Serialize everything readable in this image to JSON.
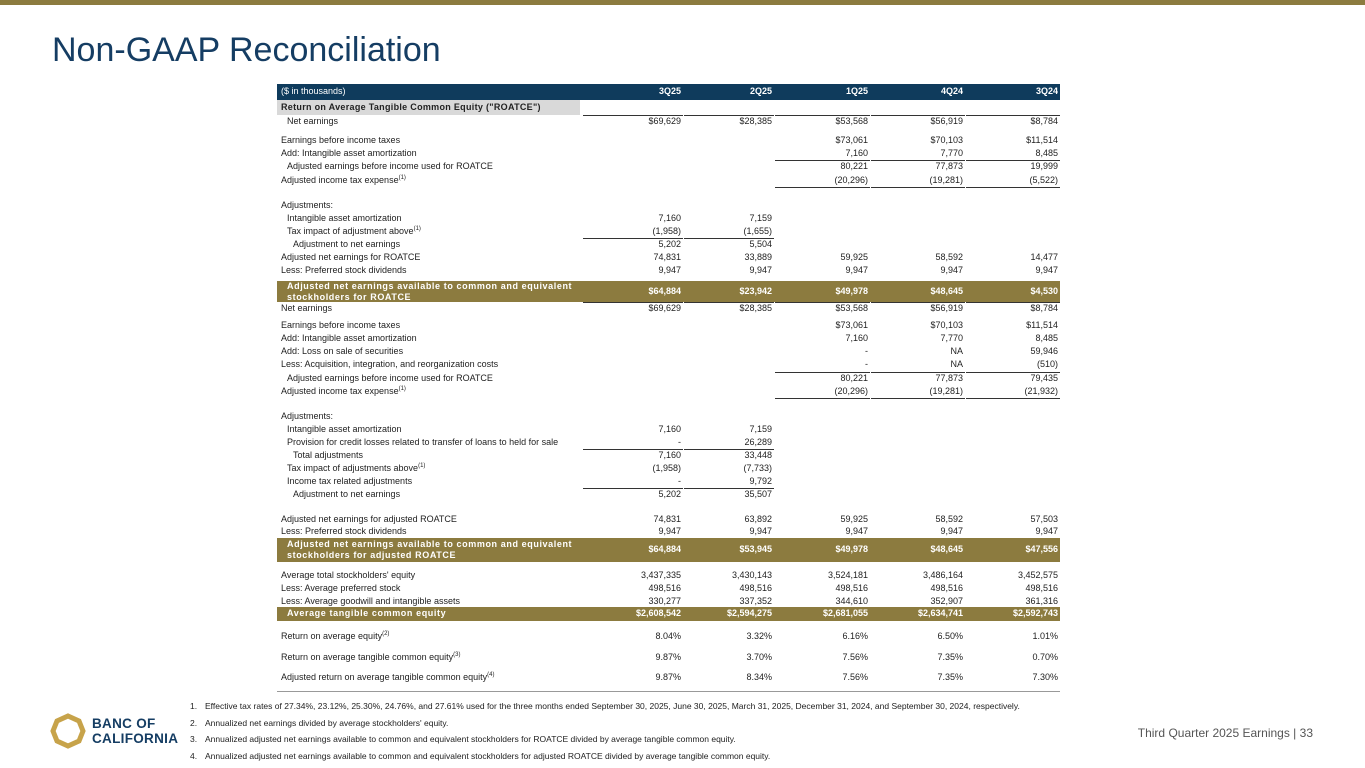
{
  "header": {
    "title": "Non-GAAP Reconciliation"
  },
  "table": {
    "unit_label": "($ in thousands)",
    "columns": [
      "3Q25",
      "2Q25",
      "1Q25",
      "4Q24",
      "3Q24"
    ],
    "rows": [
      {
        "label": "Return on Average Tangible Common Equity (\"ROATCE\")"
      },
      {
        "label": "Net earnings",
        "values": [
          "$69,629",
          "$28,385",
          "$53,568",
          "$56,919",
          "$8,784"
        ]
      },
      {
        "label": "Earnings before income taxes",
        "values": [
          null,
          null,
          "$73,061",
          "$70,103",
          "$11,514"
        ]
      },
      {
        "label": "Add: Intangible asset amortization",
        "values": [
          null,
          null,
          "7,160",
          "7,770",
          "8,485"
        ]
      },
      {
        "label": "Adjusted earnings before income used for ROATCE",
        "values": [
          null,
          null,
          "80,221",
          "77,873",
          "19,999"
        ]
      },
      {
        "label": "Adjusted income tax expense",
        "note": "(1)",
        "values": [
          null,
          null,
          "(20,296)",
          "(19,281)",
          "(5,522)"
        ]
      },
      {
        "label": "Adjustments:"
      },
      {
        "label": "Intangible asset amortization",
        "values": [
          "7,160",
          "7,159",
          null,
          null,
          null
        ]
      },
      {
        "label": "Tax impact of adjustment above",
        "note": "(1)",
        "values": [
          "(1,958)",
          "(1,655)",
          null,
          null,
          null
        ]
      },
      {
        "label": "Adjustment to net earnings",
        "values": [
          "5,202",
          "5,504",
          null,
          null,
          null
        ]
      },
      {
        "label": "Adjusted net earnings for ROATCE",
        "values": [
          "74,831",
          "33,889",
          "59,925",
          "58,592",
          "14,477"
        ]
      },
      {
        "label": "Less: Preferred stock dividends",
        "values": [
          "9,947",
          "9,947",
          "9,947",
          "9,947",
          "9,947"
        ]
      },
      {
        "label": "Adjusted net earnings available to common and equivalent stockholders for ROATCE",
        "values": [
          "$64,884",
          "$23,942",
          "$49,978",
          "$48,645",
          "$4,530"
        ]
      },
      {
        "label": "Net earnings",
        "values": [
          "$69,629",
          "$28,385",
          "$53,568",
          "$56,919",
          "$8,784"
        ]
      },
      {
        "label": "Earnings before income taxes",
        "values": [
          null,
          null,
          "$73,061",
          "$70,103",
          "$11,514"
        ]
      },
      {
        "label": "Add: Intangible asset amortization",
        "values": [
          null,
          null,
          "7,160",
          "7,770",
          "8,485"
        ]
      },
      {
        "label": "Add: Loss on sale of securities",
        "values": [
          null,
          null,
          "-",
          "NA",
          "59,946"
        ]
      },
      {
        "label": "Less: Acquisition, integration, and reorganization costs",
        "values": [
          null,
          null,
          "-",
          "NA",
          "(510)"
        ]
      },
      {
        "label": "Adjusted earnings before income used for ROATCE",
        "values": [
          null,
          null,
          "80,221",
          "77,873",
          "79,435"
        ]
      },
      {
        "label": "Adjusted income tax expense",
        "note": "(1)",
        "values": [
          null,
          null,
          "(20,296)",
          "(19,281)",
          "(21,932)"
        ]
      },
      {
        "label": "Adjustments:"
      },
      {
        "label": "Intangible asset amortization",
        "values": [
          "7,160",
          "7,159",
          null,
          null,
          null
        ]
      },
      {
        "label": "Provision for credit losses related to transfer of loans to held for sale",
        "values": [
          "-",
          "26,289",
          null,
          null,
          null
        ]
      },
      {
        "label": "Total adjustments",
        "values": [
          "7,160",
          "33,448",
          null,
          null,
          null
        ]
      },
      {
        "label": "Tax impact of adjustments above",
        "note": "(1)",
        "values": [
          "(1,958)",
          "(7,733)",
          null,
          null,
          null
        ]
      },
      {
        "label": "Income tax related adjustments",
        "values": [
          "-",
          "9,792",
          null,
          null,
          null
        ]
      },
      {
        "label": "Adjustment to net earnings",
        "values": [
          "5,202",
          "35,507",
          null,
          null,
          null
        ]
      },
      {
        "label": "Adjusted net earnings for adjusted ROATCE",
        "values": [
          "74,831",
          "63,892",
          "59,925",
          "58,592",
          "57,503"
        ]
      },
      {
        "label": "Less: Preferred stock dividends",
        "values": [
          "9,947",
          "9,947",
          "9,947",
          "9,947",
          "9,947"
        ]
      },
      {
        "label": "Adjusted net earnings available to common and equivalent stockholders for adjusted ROATCE",
        "values": [
          "$64,884",
          "$53,945",
          "$49,978",
          "$48,645",
          "$47,556"
        ]
      },
      {
        "label": "Average total stockholders' equity",
        "values": [
          "3,437,335",
          "3,430,143",
          "3,524,181",
          "3,486,164",
          "3,452,575"
        ]
      },
      {
        "label": "Less: Average preferred stock",
        "values": [
          "498,516",
          "498,516",
          "498,516",
          "498,516",
          "498,516"
        ]
      },
      {
        "label": "Less: Average goodwill and intangible assets",
        "values": [
          "330,277",
          "337,352",
          "344,610",
          "352,907",
          "361,316"
        ]
      },
      {
        "label": "Average tangible common equity",
        "values": [
          "$2,608,542",
          "$2,594,275",
          "$2,681,055",
          "$2,634,741",
          "$2,592,743"
        ]
      },
      {
        "label": "Return on average equity",
        "note": "(2)",
        "values": [
          "8.04%",
          "3.32%",
          "6.16%",
          "6.50%",
          "1.01%"
        ]
      },
      {
        "label": "Return on average tangible common equity",
        "note": "(3)",
        "values": [
          "9.87%",
          "3.70%",
          "7.56%",
          "7.35%",
          "0.70%"
        ]
      },
      {
        "label": "Adjusted return on average tangible common equity",
        "note": "(4)",
        "values": [
          "9.87%",
          "8.34%",
          "7.56%",
          "7.35%",
          "7.30%"
        ]
      }
    ]
  },
  "footnotes": [
    {
      "number": "1.",
      "text": "Effective tax rates of 27.34%, 23.12%, 25.30%, 24.76%, and 27.61% used for the three months ended September 30, 2025, June 30, 2025, March 31, 2025, December 31, 2024, and September 30, 2024, respectively."
    },
    {
      "number": "2.",
      "text": "Annualized net earnings divided by average stockholders' equity."
    },
    {
      "number": "3.",
      "text": "Annualized adjusted net earnings available to common and equivalent stockholders for ROATCE divided by average tangible common equity."
    },
    {
      "number": "4.",
      "text": "Annualized adjusted net earnings available to common and equivalent stockholders for adjusted ROATCE divided by average tangible common equity."
    }
  ],
  "logo": {
    "line1": "BANC OF",
    "line2": "CALIFORNIA"
  },
  "footer": {
    "text": "Third Quarter 2025 Earnings |",
    "page": "33"
  }
}
